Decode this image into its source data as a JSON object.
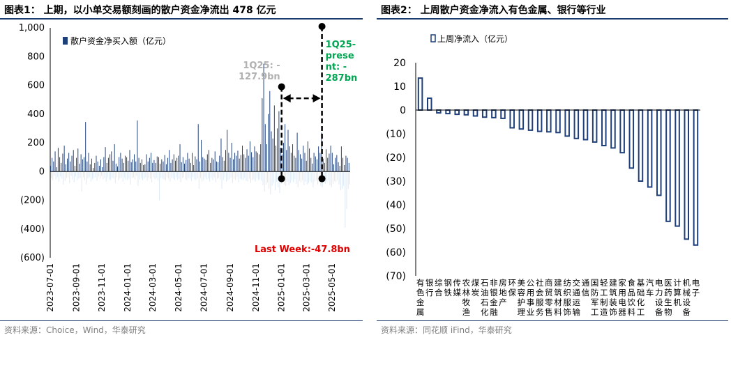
{
  "chart_data": [
    {
      "type": "bar",
      "title": "图表1： 上期，以小单交易额刻画的散户资金净流出 478 亿元",
      "source": "资料来源：Choice，Wind，华泰研究",
      "legend": {
        "label": "散户资金净买入额（亿元）",
        "position": "top-left"
      },
      "y_ticks": [
        "1,000",
        "800",
        "600",
        "400",
        "200",
        "0",
        "(200)",
        "(400)",
        "(600)"
      ],
      "ylim": [
        -600,
        1000
      ],
      "x_ticks": [
        "2023-07-01",
        "2023-09-01",
        "2023-11-01",
        "2024-01-01",
        "2024-03-01",
        "2024-05-01",
        "2024-07-01",
        "2024-09-01",
        "2024-11-01",
        "2025-01-01",
        "2025-03-01",
        "2025-05-01"
      ],
      "x_start": "2023-07-01",
      "x_end": "2025-06-13",
      "colors": {
        "positive": "#1f3f7a",
        "negative": "#dce8f5",
        "annotation_gray": "#b0b0b0",
        "annotation_green": "#00a651",
        "annotation_red": "#e00000"
      },
      "series": [
        {
          "name": "净买入",
          "values": [
            40,
            -45,
            95,
            -60,
            70,
            -30,
            140,
            -55,
            30,
            -40,
            165,
            -70,
            100,
            -35,
            60,
            -50,
            125,
            -90,
            180,
            -65,
            50,
            -45,
            90,
            -40,
            130,
            -80,
            70,
            -30,
            110,
            -55,
            150,
            -75,
            40,
            -35,
            95,
            -60,
            160,
            -50,
            55,
            -45,
            120,
            -140,
            85,
            -40,
            100,
            -60,
            345,
            -90,
            70,
            -50,
            130,
            -40,
            50,
            -70,
            90,
            -55,
            25,
            -45,
            60,
            -40,
            110,
            -65,
            70,
            -35,
            40,
            -50,
            85,
            -30,
            30,
            -55,
            100,
            -45,
            170,
            -70,
            60,
            -40,
            95,
            -55,
            120,
            -60,
            140,
            -45,
            75,
            -50,
            190,
            -80,
            55,
            -40,
            35,
            -60,
            100,
            -50,
            130,
            -45,
            90,
            -70,
            60,
            -40,
            110,
            -55,
            100,
            -60,
            75,
            -50,
            150,
            -90,
            65,
            -45,
            85,
            -40,
            120,
            -55,
            70,
            -30,
            355,
            -100,
            95,
            -55,
            60,
            -45,
            85,
            -60,
            45,
            -50,
            50,
            -40,
            120,
            -65,
            70,
            -45,
            95,
            -50,
            130,
            -75,
            60,
            -40,
            80,
            -55,
            60,
            -45,
            105,
            -60,
            100,
            -200,
            55,
            -45,
            85,
            -50,
            70,
            -55,
            115,
            -60,
            50,
            -40,
            95,
            -50,
            150,
            -70,
            60,
            -45,
            85,
            -50,
            120,
            -60,
            75,
            -40,
            95,
            -55,
            110,
            -50,
            190,
            -75,
            65,
            -45,
            100,
            -40,
            55,
            -55,
            80,
            -60,
            130,
            -45,
            90,
            -50,
            60,
            -65,
            130,
            -40,
            45,
            -55,
            105,
            -60,
            85,
            -50,
            330,
            -120,
            70,
            -45,
            220,
            -70,
            100,
            -60,
            90,
            -40,
            80,
            -55,
            120,
            -50,
            150,
            -70,
            60,
            -45,
            95,
            -60,
            85,
            -40,
            140,
            -75,
            70,
            -50,
            65,
            -45,
            110,
            -55,
            230,
            -120,
            100,
            -60,
            75,
            -40,
            150,
            -70,
            290,
            -60,
            130,
            -55,
            95,
            -45,
            200,
            -80,
            85,
            -50,
            130,
            -60,
            110,
            -40,
            145,
            -75,
            90,
            -50,
            115,
            -55,
            180,
            -60,
            120,
            -45,
            95,
            -65,
            155,
            -70,
            110,
            -50,
            210,
            -80,
            135,
            -60,
            100,
            -55,
            175,
            -70,
            140,
            -45,
            130,
            -60,
            120,
            -55,
            190,
            -65,
            510,
            -95,
            750,
            -140,
            330,
            -90,
            190,
            -75,
            400,
            -120,
            560,
            -160,
            280,
            -100,
            230,
            -80,
            460,
            -130,
            180,
            -70,
            300,
            -110,
            420,
            -150,
            165,
            -85,
            120,
            -60,
            200,
            -90,
            330,
            -100,
            150,
            -70,
            290,
            -95,
            175,
            -80,
            130,
            -60,
            190,
            -75,
            110,
            -55,
            95,
            -85,
            270,
            -110,
            150,
            -65,
            120,
            -75,
            90,
            -60,
            180,
            -95,
            130,
            -70,
            75,
            -90,
            210,
            -80,
            160,
            -65,
            95,
            -75,
            55,
            -110,
            130,
            -70,
            105,
            -60,
            85,
            -90,
            175,
            -80,
            130,
            -100,
            270,
            -110,
            90,
            -75,
            60,
            -85,
            155,
            -70,
            95,
            -60,
            125,
            -95,
            180,
            -110,
            130,
            -85,
            50,
            -65,
            95,
            -75,
            115,
            -60,
            65,
            -90,
            40,
            -130,
            175,
            -120,
            95,
            -100,
            45,
            -390,
            110,
            -260,
            95,
            -120,
            60,
            -90
          ]
        }
      ],
      "annotations": {
        "left_label": "1Q25: -127.9bn",
        "left_label_lines": [
          "1Q25: -",
          "127.9bn"
        ],
        "right_label": "1Q25-present: -287bn",
        "right_label_lines": [
          "1Q25-",
          "prese",
          "nt: -",
          "287bn"
        ],
        "last_week": "Last Week:-47.8bn",
        "left_marker_date": "2025-01-01",
        "right_marker_date": "2025-04-07",
        "left_marker_top": 590,
        "right_marker_top": 1010,
        "marker_bottom": -50,
        "arrow_level": 510
      }
    },
    {
      "type": "bar",
      "title": "图表2： 上周散户资金净流入有色金属、银行等行业",
      "source": "资料来源：同花顺 iFind，华泰研究",
      "legend": {
        "label": "上周净流入（亿元）",
        "position": "top-left"
      },
      "y_ticks": [
        "20",
        "10",
        "0",
        "(10)",
        "(20)",
        "(30)",
        "(40)",
        "(50)",
        "(60)",
        "(70)"
      ],
      "ylim": [
        -70,
        20
      ],
      "categories": [
        "有色金属",
        "银行",
        "综合",
        "钢铁",
        "传媒",
        "农林牧渔",
        "煤炭",
        "石油石化",
        "非银金融",
        "房地产",
        "环保",
        "美容护理",
        "公用事业",
        "社会服务",
        "商贸零售",
        "建筑材料",
        "纺织服饰",
        "交通运输",
        "通信",
        "国防军工",
        "轻工制造",
        "建筑装饰",
        "家用电器",
        "食品饮料",
        "基础化工",
        "汽车",
        "电力设备",
        "医药生物",
        "计算机",
        "机械设备",
        "电子"
      ],
      "values": [
        13.5,
        5,
        -1.2,
        -1.5,
        -1.8,
        -2,
        -2.5,
        -3,
        -3.2,
        -3.5,
        -7.5,
        -8,
        -8.5,
        -9,
        -9.2,
        -9.5,
        -11,
        -12,
        -12.5,
        -13.5,
        -15,
        -16,
        -18,
        -24.5,
        -30,
        -32.5,
        -36,
        -47,
        -49,
        -54.5,
        -57
      ],
      "colors": {
        "bar_outline": "#1f3f7a",
        "bar_fill": "#ffffff"
      }
    }
  ]
}
